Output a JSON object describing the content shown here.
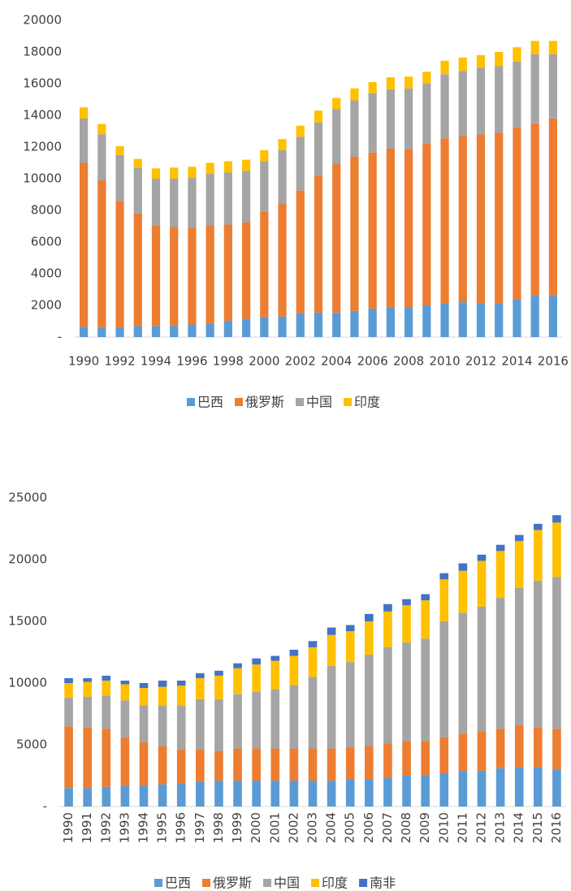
{
  "chart_data": [
    {
      "type": "stacked_bar",
      "categories": [
        "1990",
        null,
        "1992",
        null,
        "1994",
        null,
        "1996",
        null,
        "1998",
        null,
        "2000",
        null,
        "2002",
        null,
        "2004",
        null,
        "2006",
        null,
        "2008",
        null,
        "2010",
        null,
        "2012",
        null,
        "2014",
        null,
        "2016"
      ],
      "series": [
        {
          "name": "巴西",
          "color": "#5b9bd5",
          "values": [
            650,
            600,
            600,
            700,
            700,
            700,
            800,
            850,
            1000,
            1150,
            1250,
            1300,
            1500,
            1550,
            1550,
            1650,
            1800,
            1850,
            1900,
            2000,
            2100,
            2200,
            2100,
            2100,
            2400,
            2600,
            2600
          ]
        },
        {
          "name": "俄罗斯",
          "color": "#ed7d31",
          "values": [
            10350,
            9300,
            8000,
            7100,
            6350,
            6250,
            6100,
            6200,
            6100,
            6100,
            6650,
            7150,
            7750,
            8650,
            9400,
            9750,
            9850,
            10050,
            9950,
            10200,
            10450,
            10500,
            10700,
            10800,
            10800,
            10900,
            11200
          ]
        },
        {
          "name": "中国",
          "color": "#a5a5a5",
          "values": [
            2800,
            2900,
            2900,
            2900,
            2950,
            3050,
            3150,
            3250,
            3300,
            3250,
            3200,
            3350,
            3400,
            3350,
            3450,
            3550,
            3750,
            3750,
            3850,
            3800,
            4050,
            4100,
            4200,
            4200,
            4200,
            4350,
            4050
          ]
        },
        {
          "name": "印度",
          "color": "#ffc000",
          "values": [
            700,
            650,
            550,
            550,
            650,
            700,
            700,
            700,
            700,
            700,
            700,
            700,
            700,
            750,
            700,
            750,
            700,
            750,
            750,
            750,
            850,
            850,
            800,
            900,
            900,
            850,
            850
          ]
        }
      ],
      "ylim": [
        0,
        20000
      ],
      "yticks": [
        {
          "value": 0,
          "label": "-"
        },
        2000,
        4000,
        6000,
        8000,
        10000,
        12000,
        14000,
        16000,
        18000,
        20000
      ],
      "legend": "bottom"
    },
    {
      "type": "stacked_bar",
      "categories": [
        "1990",
        "1991",
        "1992",
        "1993",
        "1994",
        "1995",
        "1996",
        "1997",
        "1998",
        "1999",
        "2000",
        "2001",
        "2002",
        "2003",
        "2004",
        "2005",
        "2006",
        "2007",
        "2008",
        "2009",
        "2010",
        "2011",
        "2012",
        "2013",
        "2014",
        "2015",
        "2016"
      ],
      "series": [
        {
          "name": "巴西",
          "color": "#5b9bd5",
          "values": [
            1500,
            1500,
            1600,
            1700,
            1700,
            1800,
            1900,
            2000,
            2100,
            2100,
            2100,
            2100,
            2100,
            2100,
            2100,
            2200,
            2200,
            2300,
            2500,
            2500,
            2700,
            2900,
            2900,
            3100,
            3200,
            3200,
            3000
          ]
        },
        {
          "name": "俄罗斯",
          "color": "#ed7d31",
          "values": [
            5000,
            4900,
            4700,
            3900,
            3500,
            3100,
            2700,
            2600,
            2400,
            2600,
            2600,
            2600,
            2600,
            2600,
            2600,
            2600,
            2700,
            2800,
            2800,
            2800,
            2900,
            3000,
            3200,
            3200,
            3400,
            3200,
            3300
          ]
        },
        {
          "name": "中国",
          "color": "#a5a5a5",
          "values": [
            2300,
            2500,
            2700,
            3000,
            3000,
            3300,
            3600,
            4100,
            4200,
            4400,
            4600,
            4800,
            5100,
            5800,
            6700,
            6900,
            7400,
            7800,
            8000,
            8300,
            9400,
            9800,
            10100,
            10600,
            11100,
            11900,
            12300
          ]
        },
        {
          "name": "印度",
          "color": "#ffc000",
          "values": [
            1200,
            1200,
            1200,
            1300,
            1400,
            1500,
            1600,
            1700,
            1900,
            2100,
            2200,
            2300,
            2400,
            2400,
            2500,
            2500,
            2700,
            2900,
            3000,
            3100,
            3400,
            3400,
            3700,
            3800,
            3800,
            4100,
            4400
          ]
        },
        {
          "name": "南非",
          "color": "#4472c4",
          "values": [
            400,
            300,
            400,
            300,
            400,
            500,
            400,
            400,
            400,
            400,
            500,
            400,
            500,
            500,
            600,
            500,
            600,
            600,
            500,
            500,
            500,
            600,
            500,
            500,
            500,
            500,
            600
          ]
        }
      ],
      "ylim": [
        0,
        25000
      ],
      "yticks": [
        {
          "value": 0,
          "label": "-"
        },
        5000,
        10000,
        15000,
        20000,
        25000
      ],
      "legend": "bottom"
    }
  ]
}
